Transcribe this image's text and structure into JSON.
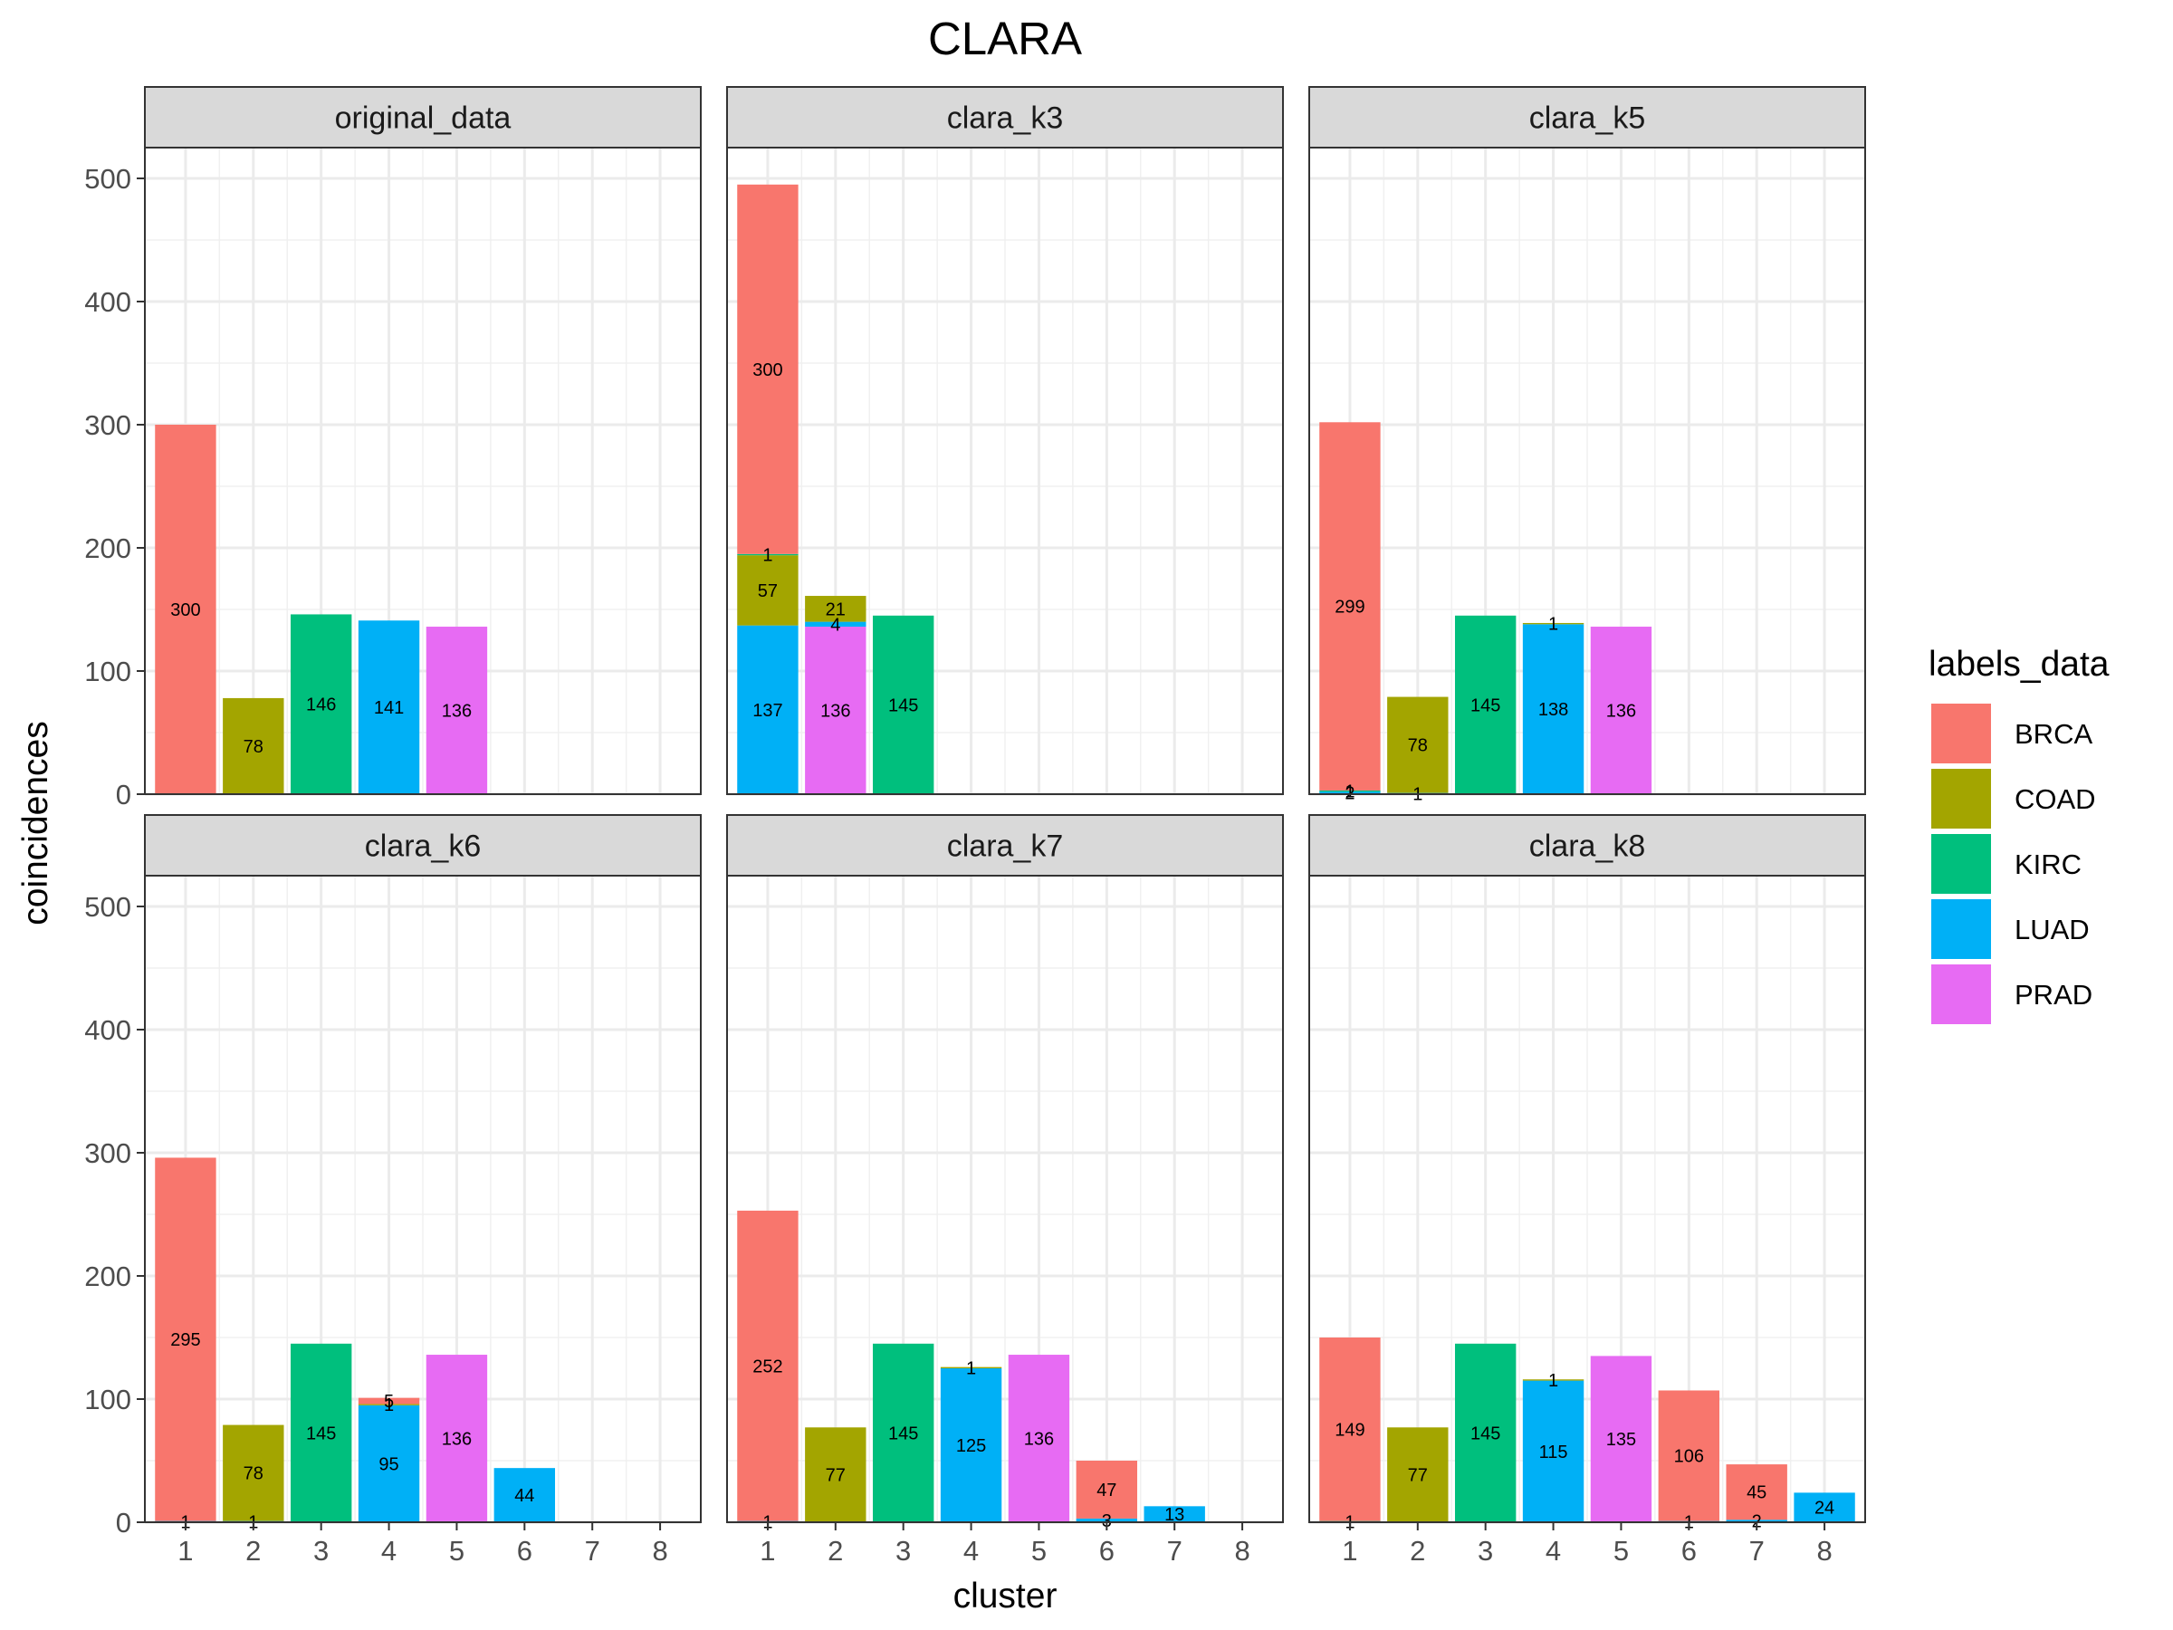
{
  "chart_data": {
    "type": "bar",
    "stacked": true,
    "title": "CLARA",
    "xlabel": "cluster",
    "ylabel": "coincidences",
    "ylim": [
      0,
      525
    ],
    "y_ticks": [
      0,
      100,
      200,
      300,
      400,
      500
    ],
    "x_ticks": [
      1,
      2,
      3,
      4,
      5,
      6,
      7,
      8
    ],
    "grid": true,
    "legend": {
      "title": "labels_data",
      "position": "right",
      "entries": [
        {
          "name": "BRCA",
          "color": "#F8766D"
        },
        {
          "name": "COAD",
          "color": "#A3A500"
        },
        {
          "name": "KIRC",
          "color": "#00BF7D"
        },
        {
          "name": "LUAD",
          "color": "#00B0F6"
        },
        {
          "name": "PRAD",
          "color": "#E76BF3"
        }
      ]
    },
    "panels": [
      {
        "name": "original_data",
        "bars": [
          {
            "cluster": 1,
            "segments": [
              {
                "label": "BRCA",
                "value": 300,
                "text": "300"
              }
            ]
          },
          {
            "cluster": 2,
            "segments": [
              {
                "label": "COAD",
                "value": 78,
                "text": "78"
              }
            ]
          },
          {
            "cluster": 3,
            "segments": [
              {
                "label": "KIRC",
                "value": 146,
                "text": "146"
              }
            ]
          },
          {
            "cluster": 4,
            "segments": [
              {
                "label": "LUAD",
                "value": 141,
                "text": "141"
              }
            ]
          },
          {
            "cluster": 5,
            "segments": [
              {
                "label": "PRAD",
                "value": 136,
                "text": "136"
              }
            ]
          }
        ]
      },
      {
        "name": "clara_k3",
        "bars": [
          {
            "cluster": 1,
            "segments": [
              {
                "label": "LUAD",
                "value": 137,
                "text": "137"
              },
              {
                "label": "COAD",
                "value": 57,
                "text": "57"
              },
              {
                "label": "KIRC",
                "value": 1,
                "text": "1"
              },
              {
                "label": "BRCA",
                "value": 300,
                "text": "300"
              }
            ]
          },
          {
            "cluster": 2,
            "segments": [
              {
                "label": "PRAD",
                "value": 136,
                "text": "136"
              },
              {
                "label": "LUAD",
                "value": 4,
                "text": "4"
              },
              {
                "label": "COAD",
                "value": 21,
                "text": "21"
              }
            ]
          },
          {
            "cluster": 3,
            "segments": [
              {
                "label": "KIRC",
                "value": 145,
                "text": "145"
              }
            ]
          }
        ]
      },
      {
        "name": "clara_k5",
        "bars": [
          {
            "cluster": 1,
            "segments": [
              {
                "label": "LUAD",
                "value": 2,
                "text": "2"
              },
              {
                "label": "KIRC",
                "value": 1,
                "text": "1"
              },
              {
                "label": "BRCA",
                "value": 299,
                "text": "299"
              }
            ]
          },
          {
            "cluster": 2,
            "segments": [
              {
                "label": "LUAD",
                "value": 1,
                "text": "1"
              },
              {
                "label": "COAD",
                "value": 78,
                "text": "78"
              }
            ]
          },
          {
            "cluster": 3,
            "segments": [
              {
                "label": "KIRC",
                "value": 145,
                "text": "145"
              }
            ]
          },
          {
            "cluster": 4,
            "segments": [
              {
                "label": "LUAD",
                "value": 138,
                "text": "138"
              },
              {
                "label": "COAD",
                "value": 1,
                "text": "1"
              }
            ]
          },
          {
            "cluster": 5,
            "segments": [
              {
                "label": "PRAD",
                "value": 136,
                "text": "136"
              }
            ]
          }
        ]
      },
      {
        "name": "clara_k6",
        "bars": [
          {
            "cluster": 1,
            "segments": [
              {
                "label": "LUAD",
                "value": 1,
                "text": "1"
              },
              {
                "label": "BRCA",
                "value": 295,
                "text": "295"
              }
            ]
          },
          {
            "cluster": 2,
            "segments": [
              {
                "label": "LUAD",
                "value": 1,
                "text": "1"
              },
              {
                "label": "COAD",
                "value": 78,
                "text": "78"
              }
            ]
          },
          {
            "cluster": 3,
            "segments": [
              {
                "label": "KIRC",
                "value": 145,
                "text": "145"
              }
            ]
          },
          {
            "cluster": 4,
            "segments": [
              {
                "label": "LUAD",
                "value": 95,
                "text": "95"
              },
              {
                "label": "COAD",
                "value": 1,
                "text": "1"
              },
              {
                "label": "BRCA",
                "value": 5,
                "text": "5"
              }
            ]
          },
          {
            "cluster": 5,
            "segments": [
              {
                "label": "PRAD",
                "value": 136,
                "text": "136"
              }
            ]
          },
          {
            "cluster": 6,
            "segments": [
              {
                "label": "LUAD",
                "value": 44,
                "text": "44"
              }
            ]
          }
        ]
      },
      {
        "name": "clara_k7",
        "bars": [
          {
            "cluster": 1,
            "segments": [
              {
                "label": "LUAD",
                "value": 1,
                "text": "1"
              },
              {
                "label": "BRCA",
                "value": 252,
                "text": "252"
              }
            ]
          },
          {
            "cluster": 2,
            "segments": [
              {
                "label": "COAD",
                "value": 77,
                "text": "77"
              }
            ]
          },
          {
            "cluster": 3,
            "segments": [
              {
                "label": "KIRC",
                "value": 145,
                "text": "145"
              }
            ]
          },
          {
            "cluster": 4,
            "segments": [
              {
                "label": "LUAD",
                "value": 125,
                "text": "125"
              },
              {
                "label": "COAD",
                "value": 1,
                "text": "1"
              }
            ]
          },
          {
            "cluster": 5,
            "segments": [
              {
                "label": "PRAD",
                "value": 136,
                "text": "136"
              }
            ]
          },
          {
            "cluster": 6,
            "segments": [
              {
                "label": "LUAD",
                "value": 3,
                "text": "3"
              },
              {
                "label": "BRCA",
                "value": 47,
                "text": "47"
              }
            ]
          },
          {
            "cluster": 7,
            "segments": [
              {
                "label": "LUAD",
                "value": 13,
                "text": "13"
              }
            ]
          }
        ]
      },
      {
        "name": "clara_k8",
        "bars": [
          {
            "cluster": 1,
            "segments": [
              {
                "label": "KIRC",
                "value": 1,
                "text": "1"
              },
              {
                "label": "BRCA",
                "value": 149,
                "text": "149"
              }
            ]
          },
          {
            "cluster": 2,
            "segments": [
              {
                "label": "COAD",
                "value": 77,
                "text": "77"
              }
            ]
          },
          {
            "cluster": 3,
            "segments": [
              {
                "label": "KIRC",
                "value": 145,
                "text": "145"
              }
            ]
          },
          {
            "cluster": 4,
            "segments": [
              {
                "label": "LUAD",
                "value": 115,
                "text": "115"
              },
              {
                "label": "COAD",
                "value": 1,
                "text": "1"
              }
            ]
          },
          {
            "cluster": 5,
            "segments": [
              {
                "label": "PRAD",
                "value": 135,
                "text": "135"
              }
            ]
          },
          {
            "cluster": 6,
            "segments": [
              {
                "label": "LUAD",
                "value": 1,
                "text": "1"
              },
              {
                "label": "BRCA",
                "value": 106,
                "text": "106"
              }
            ]
          },
          {
            "cluster": 7,
            "segments": [
              {
                "label": "LUAD",
                "value": 2,
                "text": "2"
              },
              {
                "label": "BRCA",
                "value": 45,
                "text": "45"
              }
            ]
          },
          {
            "cluster": 8,
            "segments": [
              {
                "label": "LUAD",
                "value": 24,
                "text": "24"
              }
            ]
          }
        ]
      }
    ]
  }
}
